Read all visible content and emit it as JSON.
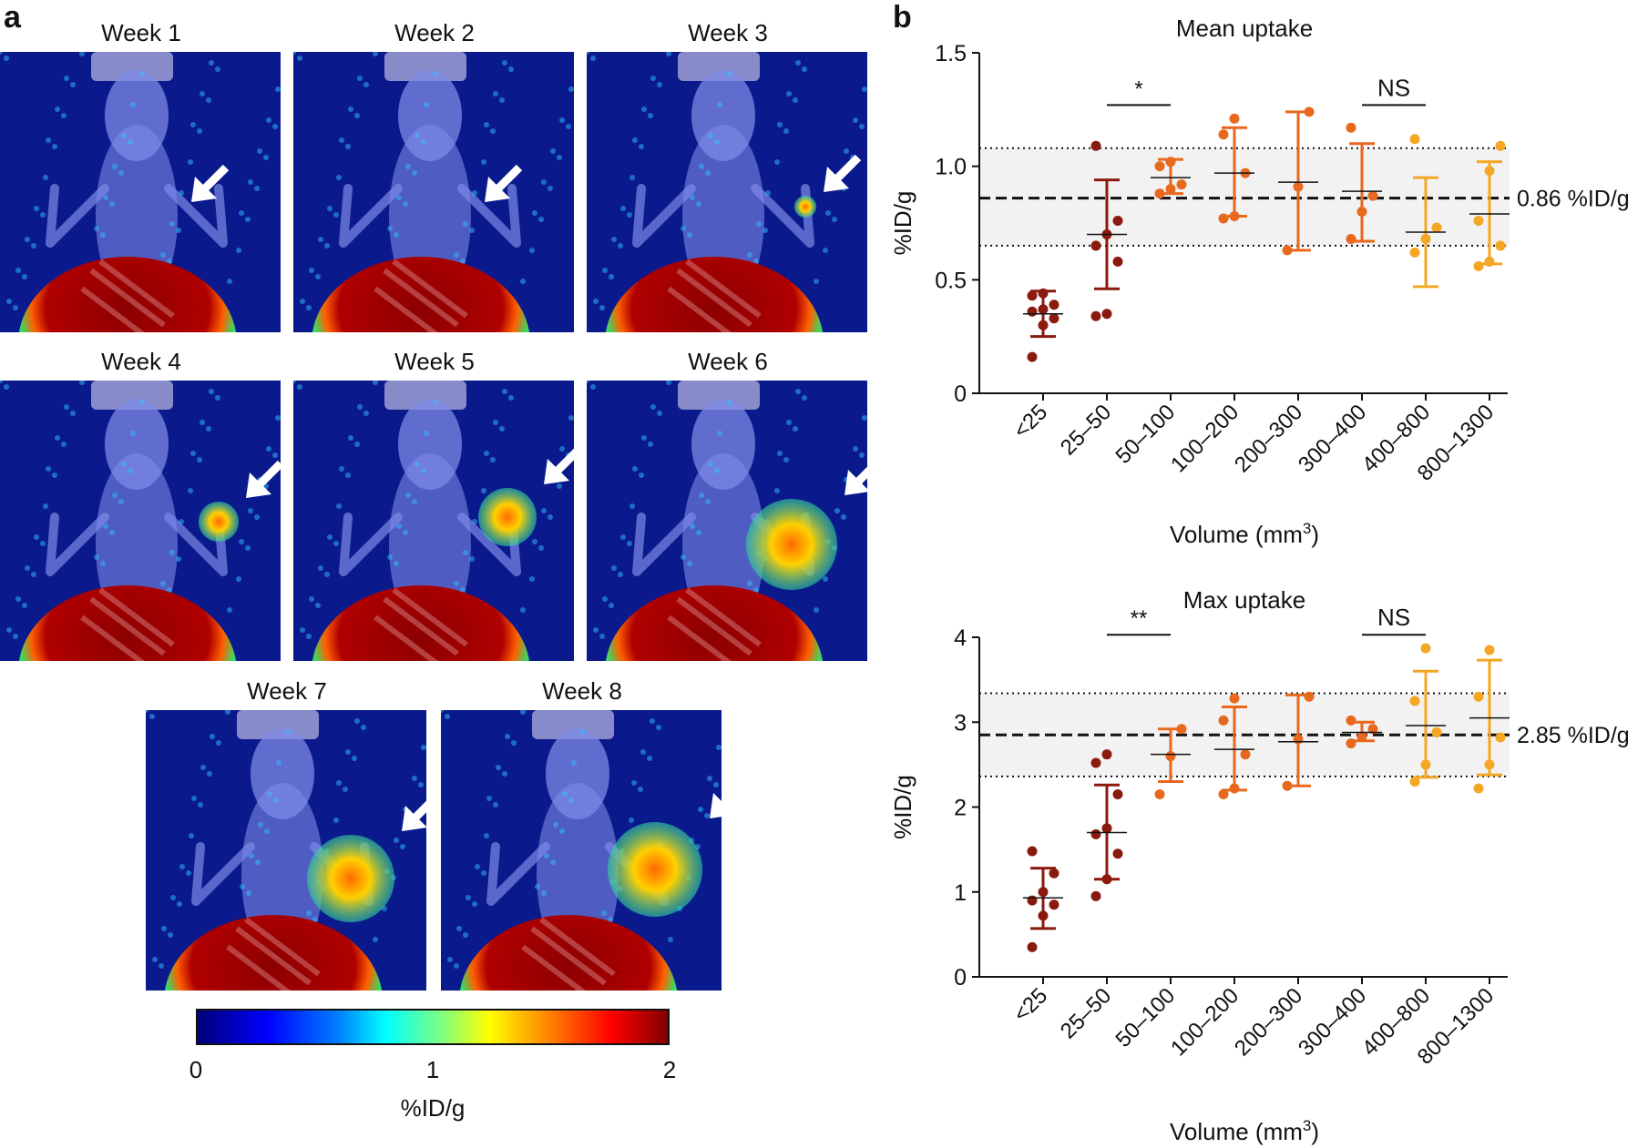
{
  "panel_a": {
    "letter": "a",
    "weeks": [
      "Week 1",
      "Week 2",
      "Week 3",
      "Week 4",
      "Week 5",
      "Week 6",
      "Week 7",
      "Week 8"
    ],
    "colorbar": {
      "ticks": [
        "0",
        "1",
        "2"
      ],
      "label": "%ID/g"
    },
    "colors": {
      "background": "#0a1a8c",
      "body": "#7d8ae6",
      "hot": "#8b0000"
    }
  },
  "panel_b": {
    "letter": "b"
  },
  "chart_data": [
    {
      "type": "scatter",
      "title": "Mean uptake",
      "xlabel": "Volume (mm",
      "xlabel_sup": "3",
      "xlabel_close": ")",
      "ylabel": "%ID/g",
      "ylim": [
        0,
        1.5
      ],
      "yticks": [
        "0",
        "0.5",
        "1.0",
        "1.5"
      ],
      "ytick_values": [
        0,
        0.5,
        1.0,
        1.5
      ],
      "categories": [
        "<25",
        "25–50",
        "50–100",
        "100–200",
        "200–300",
        "300–400",
        "400–800",
        "800–1300"
      ],
      "colors": [
        "#8b1a0e",
        "#8b1a0e",
        "#e8681e",
        "#e8681e",
        "#e8681e",
        "#e8681e",
        "#f5a623",
        "#f5a623"
      ],
      "points": [
        [
          0.16,
          0.3,
          0.33,
          0.36,
          0.37,
          0.39,
          0.43,
          0.44
        ],
        [
          0.34,
          0.35,
          0.58,
          0.65,
          0.7,
          0.76,
          1.09
        ],
        [
          0.88,
          0.9,
          0.92,
          1.0,
          1.02
        ],
        [
          0.77,
          0.78,
          0.97,
          1.14,
          1.21
        ],
        [
          0.63,
          0.91,
          1.24
        ],
        [
          0.68,
          0.8,
          0.87,
          1.17
        ],
        [
          0.62,
          0.68,
          0.73,
          1.12
        ],
        [
          0.56,
          0.58,
          0.65,
          0.76,
          0.98,
          1.09
        ]
      ],
      "mean": [
        0.35,
        0.7,
        0.95,
        0.97,
        0.93,
        0.89,
        0.71,
        0.79
      ],
      "err_low": [
        0.25,
        0.46,
        0.88,
        0.78,
        0.63,
        0.67,
        0.47,
        0.57
      ],
      "err_high": [
        0.45,
        0.94,
        1.03,
        1.17,
        1.24,
        1.1,
        0.95,
        1.02
      ],
      "reference": {
        "value": 0.86,
        "label": "0.86 %ID/g",
        "lower": 0.65,
        "upper": 1.08
      },
      "significance": [
        {
          "from": 1,
          "to": 2,
          "label": "*",
          "y": 1.27
        },
        {
          "from": 5,
          "to": 6,
          "label": "NS",
          "y": 1.27
        }
      ]
    },
    {
      "type": "scatter",
      "title": "Max uptake",
      "xlabel": "Volume (mm",
      "xlabel_sup": "3",
      "xlabel_close": ")",
      "ylabel": "%ID/g",
      "ylim": [
        0,
        4
      ],
      "yticks": [
        "0",
        "1",
        "2",
        "3",
        "4"
      ],
      "ytick_values": [
        0,
        1,
        2,
        3,
        4
      ],
      "categories": [
        "<25",
        "25–50",
        "50–100",
        "100–200",
        "200–300",
        "300–400",
        "400–800",
        "800–1300"
      ],
      "colors": [
        "#8b1a0e",
        "#8b1a0e",
        "#e8681e",
        "#e8681e",
        "#e8681e",
        "#e8681e",
        "#f5a623",
        "#f5a623"
      ],
      "points": [
        [
          0.35,
          0.72,
          0.85,
          0.9,
          1.0,
          1.22,
          1.48
        ],
        [
          0.95,
          1.15,
          1.45,
          1.68,
          1.75,
          2.15,
          2.52,
          2.62
        ],
        [
          2.15,
          2.6,
          2.92
        ],
        [
          2.15,
          2.22,
          2.62,
          3.02,
          3.28
        ],
        [
          2.25,
          2.8,
          3.3
        ],
        [
          2.75,
          2.83,
          2.92,
          3.02
        ],
        [
          2.3,
          2.5,
          2.88,
          3.25,
          3.87
        ],
        [
          2.22,
          2.5,
          2.82,
          3.3,
          3.85
        ]
      ],
      "mean": [
        0.93,
        1.7,
        2.62,
        2.68,
        2.77,
        2.88,
        2.96,
        3.05
      ],
      "err_low": [
        0.57,
        1.15,
        2.3,
        2.2,
        2.25,
        2.78,
        2.35,
        2.38
      ],
      "err_high": [
        1.28,
        2.26,
        2.92,
        3.18,
        3.32,
        3.0,
        3.6,
        3.73
      ],
      "reference": {
        "value": 2.85,
        "label": "2.85 %ID/g",
        "lower": 2.36,
        "upper": 3.34
      },
      "significance": [
        {
          "from": 1,
          "to": 2,
          "label": "**",
          "y": 4.03
        },
        {
          "from": 5,
          "to": 6,
          "label": "NS",
          "y": 4.03
        }
      ]
    }
  ]
}
